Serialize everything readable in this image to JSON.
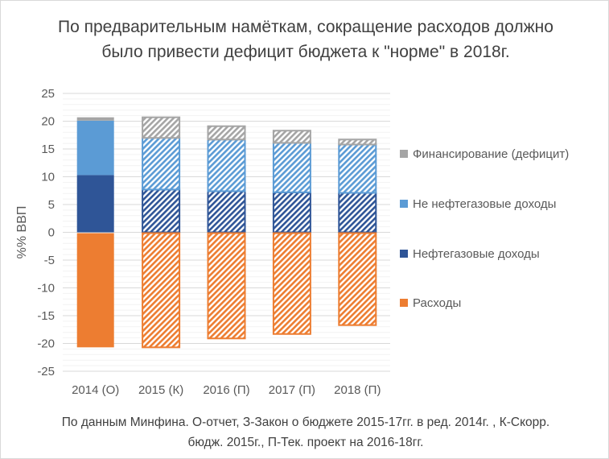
{
  "chart_data": {
    "type": "bar",
    "stacked": true,
    "title": "По предварительным намёткам, сокращение расходов должно было привести дефицит бюджета к \"норме\" в 2018г.",
    "footnote": "По данным Минфина. О-отчет, З-Закон о бюджете 2015-17гг. в ред. 2014г. , К-Скорр. бюдж. 2015г., П-Тек. проект на 2016-18гг.",
    "ylabel": "%% ВВП",
    "xlabel": "",
    "ylim": [
      -25,
      25
    ],
    "yticks": [
      25,
      20,
      15,
      10,
      5,
      0,
      -5,
      -10,
      -15,
      -20,
      -25
    ],
    "grid": true,
    "legend_position": "right",
    "categories": [
      "2014 (О)",
      "2015 (К)",
      "2016 (П)",
      "2017 (П)",
      "2018 (П)"
    ],
    "hatched": [
      false,
      true,
      true,
      true,
      true
    ],
    "series": [
      {
        "name": "Финансирование (дефицит)",
        "color": "#a5a5a5",
        "values": [
          0.6,
          3.7,
          2.4,
          2.2,
          0.9
        ]
      },
      {
        "name": "Не нефтегазовые доходы",
        "color": "#5b9bd5",
        "values": [
          9.8,
          9.3,
          9.3,
          8.9,
          8.7
        ]
      },
      {
        "name": "Нефтегазовые доходы",
        "color": "#2f5597",
        "values": [
          10.3,
          7.7,
          7.4,
          7.2,
          7.1
        ]
      },
      {
        "name": "Расходы",
        "color": "#ed7d31",
        "values": [
          -20.7,
          -20.7,
          -19.1,
          -18.3,
          -16.7
        ]
      }
    ]
  }
}
